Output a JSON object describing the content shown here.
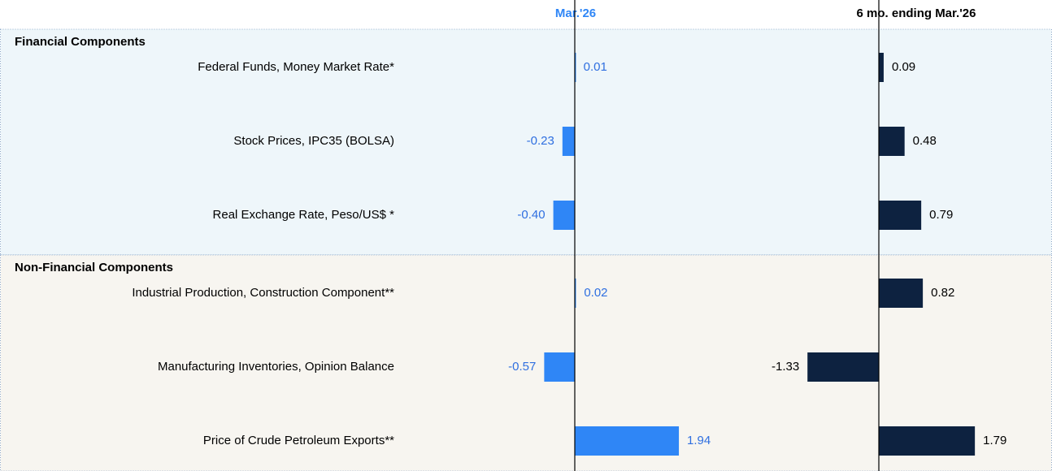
{
  "chart_data": {
    "type": "bar",
    "orientation": "horizontal",
    "series": [
      {
        "name": "Mar.'26",
        "color": "#2f86f6",
        "label_color": "#2f6fe0"
      },
      {
        "name": "6 mo. ending Mar.'26",
        "color": "#0d2240",
        "label_color": "#000000"
      }
    ],
    "groups": [
      {
        "title": "Financial Components",
        "categories": [
          "Federal Funds, Money Market Rate*",
          "Stock Prices, IPC35 (BOLSA)",
          "Real Exchange Rate, Peso/US$ *"
        ],
        "background": "#eef6fa",
        "series": [
          {
            "values": [
              0.01,
              -0.23,
              -0.4
            ],
            "value_labels": [
              "0.01",
              "-0.23",
              "-0.40"
            ]
          },
          {
            "values": [
              0.09,
              0.48,
              0.79
            ],
            "value_labels": [
              "0.09",
              "0.48",
              "0.79"
            ]
          }
        ]
      },
      {
        "title": "Non-Financial Components",
        "categories": [
          "Industrial Production, Construction Component**",
          "Manufacturing Inventories, Opinion Balance",
          "Price of Crude Petroleum Exports**"
        ],
        "background": "#f7f5f0",
        "series": [
          {
            "values": [
              0.02,
              -0.57,
              1.94
            ],
            "value_labels": [
              "0.02",
              "-0.57",
              "1.94"
            ]
          },
          {
            "values": [
              0.82,
              -1.33,
              1.79
            ],
            "value_labels": [
              "0.82",
              "-1.33",
              "1.79"
            ]
          }
        ]
      }
    ]
  }
}
